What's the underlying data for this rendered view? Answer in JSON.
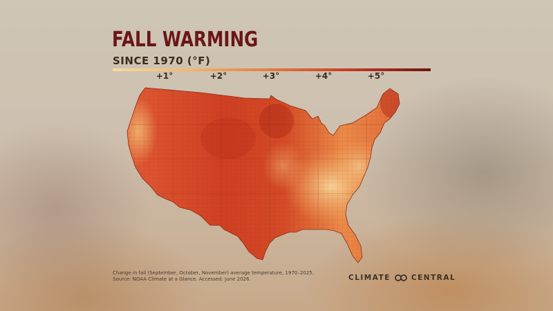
{
  "title": "FALL WARMING",
  "subtitle": "SINCE 1970 (°F)",
  "legend": {
    "ticks": [
      "+1°",
      "+2°",
      "+3°",
      "+4°",
      "+5°"
    ],
    "colors": [
      "#f6dba0",
      "#f0b56a",
      "#e37a3c",
      "#c43a22",
      "#6b1212"
    ]
  },
  "footnote": {
    "line1": "Change in fall (September, October, November) average temperature, 1970–2025.",
    "line2": "Source: NOAA Climate at a Glance. Accessed: June 2026."
  },
  "logo": {
    "left": "CLIMATE",
    "right": "CENTRAL",
    "icon": "infinity-logo-icon"
  },
  "map": {
    "region": "contiguous-united-states",
    "icon": "us-counties-map"
  }
}
